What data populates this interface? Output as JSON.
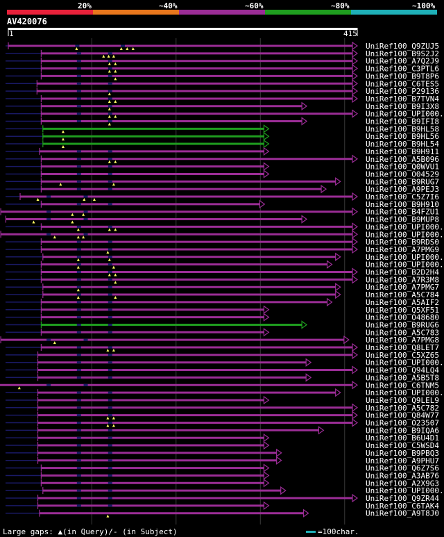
{
  "query": {
    "name": "AV420076",
    "length": 415,
    "start": 1,
    "end": 415
  },
  "legend": {
    "scale": [
      {
        "label": "20%",
        "color": "#e8213a"
      },
      {
        "label": "~40%",
        "color": "#e8771d"
      },
      {
        "label": "~60%",
        "color": "#9b2d96"
      },
      {
        "label": "~80%",
        "color": "#1f9e1f"
      },
      {
        "label": "~100%",
        "color": "#1fb0b8"
      }
    ],
    "footer_text": "Large gaps: ▲(in Query)/- (in Subject)",
    "scale_bar_text": "=100char."
  },
  "hits": [
    {
      "id": "UniRef100_Q9ZUJ5",
      "qs": 1,
      "qe": 415,
      "color": "#9b2d96",
      "sl": -25,
      "marks": [
        82,
        135,
        142,
        149
      ],
      "dashes": [
        82,
        136
      ]
    },
    {
      "id": "UniRef100_B9S2J2",
      "qs": 40,
      "qe": 415,
      "color": "#9b2d96",
      "sl": -70,
      "marks": [
        114,
        120,
        126
      ],
      "dashes": [
        84,
        121
      ]
    },
    {
      "id": "UniRef100_A7Q2J9",
      "qs": 40,
      "qe": 415,
      "color": "#9b2d96",
      "sl": -45,
      "marks": [
        121,
        128
      ],
      "dashes": [
        84,
        121
      ]
    },
    {
      "id": "UniRef100_C3PTL6",
      "qs": 40,
      "qe": 415,
      "color": "#9b2d96",
      "sl": -45,
      "marks": [
        121,
        128
      ],
      "dashes": [
        84,
        121
      ]
    },
    {
      "id": "UniRef100_B9T8P6",
      "qs": 40,
      "qe": 415,
      "color": "#9b2d96",
      "sl": -45,
      "marks": [
        128
      ],
      "dashes": [
        84,
        121
      ]
    },
    {
      "id": "UniRef100_C6TES5",
      "qs": 35,
      "qe": 415,
      "color": "#9b2d96",
      "sl": -40,
      "marks": [],
      "dashes": [
        84,
        121
      ]
    },
    {
      "id": "UniRef100_P29136",
      "qs": 35,
      "qe": 415,
      "color": "#9b2d96",
      "sl": -40,
      "marks": [
        121
      ],
      "dashes": [
        84,
        121
      ]
    },
    {
      "id": "UniRef100_B7TVN4",
      "qs": 40,
      "qe": 415,
      "color": "#9b2d96",
      "sl": -45,
      "marks": [
        121,
        128
      ],
      "dashes": [
        84,
        121
      ]
    },
    {
      "id": "UniRef100_B9I3X8",
      "qs": 40,
      "qe": 355,
      "color": "#9b2d96",
      "sl": -45,
      "marks": [
        121
      ],
      "dashes": [
        84,
        121
      ]
    },
    {
      "id": "UniRef100_UPI000..",
      "qs": 40,
      "qe": 415,
      "color": "#9b2d96",
      "sl": -45,
      "marks": [
        121,
        128
      ],
      "dashes": [
        84,
        121
      ]
    },
    {
      "id": "UniRef100_B9IFI8",
      "qs": 40,
      "qe": 355,
      "color": "#9b2d96",
      "sl": -45,
      "marks": [
        121
      ],
      "dashes": [
        84,
        121
      ]
    },
    {
      "id": "UniRef100_B9HL58",
      "qs": 42,
      "qe": 310,
      "color": "#1f9e1f",
      "sl": -45,
      "marks": [
        66
      ],
      "dashes": []
    },
    {
      "id": "UniRef100_B9HL56",
      "qs": 42,
      "qe": 310,
      "color": "#1f9e1f",
      "sl": -45,
      "marks": [
        66
      ],
      "dashes": []
    },
    {
      "id": "UniRef100_B9HL54",
      "qs": 42,
      "qe": 310,
      "color": "#1f9e1f",
      "sl": -45,
      "marks": [
        66
      ],
      "dashes": []
    },
    {
      "id": "UniRef100_B9H911",
      "qs": 38,
      "qe": 310,
      "color": "#9b2d96",
      "sl": -45,
      "marks": [],
      "dashes": [
        84,
        121
      ]
    },
    {
      "id": "UniRef100_A5B096",
      "qs": 40,
      "qe": 415,
      "color": "#9b2d96",
      "sl": -45,
      "marks": [
        121,
        128
      ],
      "dashes": [
        84,
        121
      ]
    },
    {
      "id": "UniRef100_Q0WVU1",
      "qs": 40,
      "qe": 310,
      "color": "#9b2d96",
      "sl": -45,
      "marks": [],
      "dashes": [
        84,
        121
      ]
    },
    {
      "id": "UniRef100_O04529",
      "qs": 40,
      "qe": 310,
      "color": "#9b2d96",
      "sl": -45,
      "marks": [],
      "dashes": [
        84,
        121
      ]
    },
    {
      "id": "UniRef100_B9RUG7",
      "qs": 40,
      "qe": 395,
      "color": "#9b2d96",
      "sl": -45,
      "marks": [
        63,
        126
      ],
      "dashes": [
        84,
        121
      ]
    },
    {
      "id": "UniRef100_A9PEJ3",
      "qs": 40,
      "qe": 378,
      "color": "#9b2d96",
      "sl": -45,
      "marks": [],
      "dashes": [
        84,
        121
      ]
    },
    {
      "id": "UniRef100_C5Z7I6",
      "qs": 15,
      "qe": 415,
      "color": "#9b2d96",
      "sl": -40,
      "marks": [
        36,
        91,
        103
      ],
      "dashes": [
        48,
        92
      ]
    },
    {
      "id": "UniRef100_B9H910",
      "qs": 40,
      "qe": 305,
      "color": "#9b2d96",
      "sl": -45,
      "marks": [],
      "dashes": [
        84,
        121
      ]
    },
    {
      "id": "UniRef100_B4FZU1",
      "qs": -8,
      "qe": 415,
      "color": "#9b2d96",
      "sl": -10,
      "marks": [
        77,
        90
      ],
      "dashes": [
        48,
        92
      ]
    },
    {
      "id": "UniRef100_B9MUP8",
      "qs": -2,
      "qe": 355,
      "color": "#9b2d96",
      "sl": -15,
      "marks": [
        31,
        77
      ],
      "dashes": [
        48,
        92
      ]
    },
    {
      "id": "UniRef100_UPI000..",
      "qs": 40,
      "qe": 415,
      "color": "#9b2d96",
      "sl": -45,
      "marks": [
        84,
        121,
        128
      ],
      "dashes": [
        84,
        121
      ]
    },
    {
      "id": "UniRef100_UPI000..",
      "qs": -8,
      "qe": 415,
      "color": "#9b2d96",
      "sl": -10,
      "marks": [
        56,
        84,
        90
      ],
      "dashes": [
        48,
        92
      ]
    },
    {
      "id": "UniRef100_B9RDS0",
      "qs": 40,
      "qe": 415,
      "color": "#9b2d96",
      "sl": -45,
      "marks": [],
      "dashes": [
        84,
        121
      ]
    },
    {
      "id": "UniRef100_A7PMG9",
      "qs": 40,
      "qe": 415,
      "color": "#9b2d96",
      "sl": -45,
      "marks": [
        119
      ],
      "dashes": [
        84,
        121
      ]
    },
    {
      "id": "UniRef100_UPI000..",
      "qs": 42,
      "qe": 395,
      "color": "#9b2d96",
      "sl": -45,
      "marks": [
        84,
        121
      ],
      "dashes": [
        84,
        121
      ]
    },
    {
      "id": "UniRef100_UPI000..",
      "qs": 40,
      "qe": 385,
      "color": "#9b2d96",
      "sl": -45,
      "marks": [
        84,
        126
      ],
      "dashes": [
        84,
        121
      ]
    },
    {
      "id": "UniRef100_B2D2H4",
      "qs": 40,
      "qe": 415,
      "color": "#9b2d96",
      "sl": -45,
      "marks": [
        121,
        128
      ],
      "dashes": [
        84,
        121
      ]
    },
    {
      "id": "UniRef100_A7R3M8",
      "qs": 40,
      "qe": 415,
      "color": "#9b2d96",
      "sl": -45,
      "marks": [
        128
      ],
      "dashes": [
        84,
        121
      ]
    },
    {
      "id": "UniRef100_A7PMG7",
      "qs": 42,
      "qe": 395,
      "color": "#9b2d96",
      "sl": -45,
      "marks": [
        84
      ],
      "dashes": [
        84,
        121
      ]
    },
    {
      "id": "UniRef100_A5C784",
      "qs": 42,
      "qe": 395,
      "color": "#9b2d96",
      "sl": -45,
      "marks": [
        84,
        128
      ],
      "dashes": [
        84,
        121
      ]
    },
    {
      "id": "UniRef100_A5AIF2",
      "qs": 40,
      "qe": 385,
      "color": "#9b2d96",
      "sl": -45,
      "marks": [],
      "dashes": [
        84,
        121
      ]
    },
    {
      "id": "UniRef100_Q5XF51",
      "qs": 40,
      "qe": 310,
      "color": "#9b2d96",
      "sl": -45,
      "marks": [],
      "dashes": [
        84,
        121
      ]
    },
    {
      "id": "UniRef100_O48680",
      "qs": 40,
      "qe": 310,
      "color": "#9b2d96",
      "sl": -45,
      "marks": [],
      "dashes": [
        84,
        121
      ]
    },
    {
      "id": "UniRef100_B9RUG6",
      "qs": 40,
      "qe": 355,
      "color": "#1f9e1f",
      "sl": -45,
      "marks": [],
      "dashes": [
        84,
        121
      ]
    },
    {
      "id": "UniRef100_A5C783",
      "qs": 40,
      "qe": 310,
      "color": "#9b2d96",
      "sl": -45,
      "marks": [],
      "dashes": [
        84,
        121
      ]
    },
    {
      "id": "UniRef100_A7PMG8",
      "qs": -8,
      "qe": 405,
      "color": "#9b2d96",
      "sl": -10,
      "marks": [
        56
      ],
      "dashes": [
        48,
        92
      ]
    },
    {
      "id": "UniRef100_Q8LET7",
      "qs": 40,
      "qe": 415,
      "color": "#9b2d96",
      "sl": -45,
      "marks": [
        119,
        126
      ],
      "dashes": [
        84,
        121
      ]
    },
    {
      "id": "UniRef100_C5XZ65",
      "qs": 36,
      "qe": 415,
      "color": "#9b2d96",
      "sl": -45,
      "marks": [],
      "dashes": [
        84,
        121
      ]
    },
    {
      "id": "UniRef100_UPI000..",
      "qs": 36,
      "qe": 360,
      "color": "#9b2d96",
      "sl": -45,
      "marks": [],
      "dashes": [
        84,
        121
      ]
    },
    {
      "id": "UniRef100_Q94LQ4",
      "qs": 36,
      "qe": 415,
      "color": "#9b2d96",
      "sl": -45,
      "marks": [],
      "dashes": [
        84,
        121
      ]
    },
    {
      "id": "UniRef100_A5B5T8",
      "qs": 36,
      "qe": 360,
      "color": "#9b2d96",
      "sl": -45,
      "marks": [],
      "dashes": [
        84,
        121
      ]
    },
    {
      "id": "UniRef100_C6TNM5",
      "qs": -25,
      "qe": 415,
      "color": "#9b2d96",
      "sl": -28,
      "marks": [
        14
      ],
      "dashes": [
        48,
        92
      ]
    },
    {
      "id": "UniRef100_UPI000..",
      "qs": 36,
      "qe": 395,
      "color": "#9b2d96",
      "sl": -45,
      "marks": [],
      "dashes": [
        84,
        121
      ]
    },
    {
      "id": "UniRef100_Q9LEL9",
      "qs": 36,
      "qe": 310,
      "color": "#9b2d96",
      "sl": -45,
      "marks": [],
      "dashes": [
        84,
        121
      ]
    },
    {
      "id": "UniRef100_A5C782",
      "qs": 36,
      "qe": 415,
      "color": "#9b2d96",
      "sl": -45,
      "marks": [],
      "dashes": [
        84,
        121
      ]
    },
    {
      "id": "UniRef100_Q84W77",
      "qs": 36,
      "qe": 415,
      "color": "#9b2d96",
      "sl": -45,
      "marks": [
        119,
        126
      ],
      "dashes": [
        84,
        121
      ]
    },
    {
      "id": "UniRef100_O23507",
      "qs": 36,
      "qe": 415,
      "color": "#9b2d96",
      "sl": -45,
      "marks": [
        119,
        126
      ],
      "dashes": [
        84,
        121
      ]
    },
    {
      "id": "UniRef100_B9IQA6",
      "qs": 36,
      "qe": 375,
      "color": "#9b2d96",
      "sl": -45,
      "marks": [],
      "dashes": [
        84,
        121
      ]
    },
    {
      "id": "UniRef100_B6U4D1",
      "qs": 36,
      "qe": 310,
      "color": "#9b2d96",
      "sl": -45,
      "marks": [],
      "dashes": [
        84,
        121
      ]
    },
    {
      "id": "UniRef100_C5WSD4",
      "qs": 36,
      "qe": 310,
      "color": "#9b2d96",
      "sl": -45,
      "marks": [],
      "dashes": [
        84,
        121
      ]
    },
    {
      "id": "UniRef100_B9PBQ3",
      "qs": 36,
      "qe": 325,
      "color": "#9b2d96",
      "sl": -45,
      "marks": [],
      "dashes": [
        84,
        121
      ]
    },
    {
      "id": "UniRef100_A9PHU7",
      "qs": 36,
      "qe": 325,
      "color": "#9b2d96",
      "sl": -45,
      "marks": [],
      "dashes": [
        84,
        121
      ]
    },
    {
      "id": "UniRef100_Q6Z7S6",
      "qs": 40,
      "qe": 310,
      "color": "#9b2d96",
      "sl": -45,
      "marks": [],
      "dashes": [
        84,
        121
      ]
    },
    {
      "id": "UniRef100_A3AB76",
      "qs": 40,
      "qe": 310,
      "color": "#9b2d96",
      "sl": -45,
      "marks": [],
      "dashes": [
        84,
        121
      ]
    },
    {
      "id": "UniRef100_A2X9G3",
      "qs": 40,
      "qe": 310,
      "color": "#9b2d96",
      "sl": -45,
      "marks": [],
      "dashes": [
        84,
        121
      ]
    },
    {
      "id": "UniRef100_UPI000..",
      "qs": 42,
      "qe": 330,
      "color": "#9b2d96",
      "sl": -45,
      "marks": [],
      "dashes": [
        84,
        121
      ]
    },
    {
      "id": "UniRef100_Q9ZR44",
      "qs": 36,
      "qe": 415,
      "color": "#9b2d96",
      "sl": -45,
      "marks": [],
      "dashes": [
        84,
        121
      ]
    },
    {
      "id": "UniRef100_C6TAK4",
      "qs": 36,
      "qe": 310,
      "color": "#9b2d96",
      "sl": -45,
      "marks": [],
      "dashes": [
        84,
        121
      ]
    },
    {
      "id": "UniRef100_A9T8J0",
      "qs": 38,
      "qe": 357,
      "color": "#9b2d96",
      "sl": -45,
      "marks": [
        119
      ],
      "dashes": []
    }
  ]
}
